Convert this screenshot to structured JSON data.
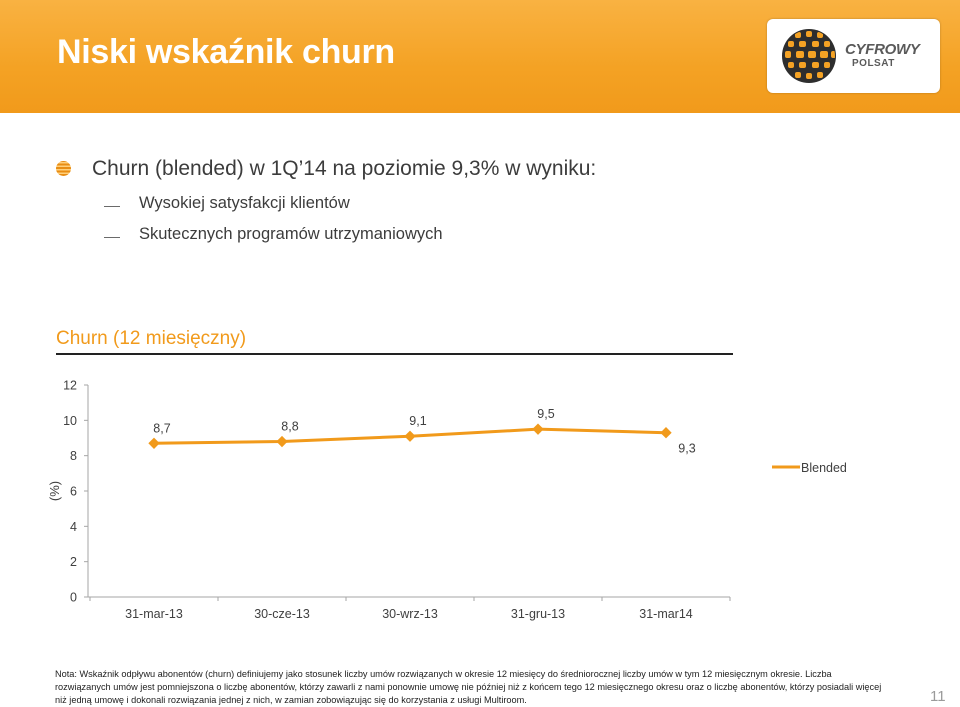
{
  "header": {
    "title": "Niski wskaźnik churn",
    "logo": {
      "line1": "CYFROWY",
      "line2": "POLSAT"
    }
  },
  "content": {
    "main_bullet": "Churn (blended) w 1Q’14 na poziomie 9,3% w wyniku:",
    "sub_bullets": [
      "Wysokiej satysfakcji klientów",
      "Skutecznych programów utrzymaniowych"
    ]
  },
  "chart_data": {
    "type": "line",
    "title": "Churn (12 miesięczny)",
    "ylabel": "(%)",
    "xlabel": "",
    "categories": [
      "31-mar-13",
      "30-cze-13",
      "30-wrz-13",
      "31-gru-13",
      "31-mar14"
    ],
    "series": [
      {
        "name": "Blended",
        "values": [
          8.7,
          8.8,
          9.1,
          9.5,
          9.3
        ],
        "labels": [
          "8,7",
          "8,8",
          "9,1",
          "9,5",
          "9,3"
        ]
      }
    ],
    "ylim": [
      0,
      12
    ],
    "yticks": [
      0,
      2,
      4,
      6,
      8,
      10,
      12
    ],
    "grid": false,
    "legend": "right",
    "color": "#f19a1b"
  },
  "footer": {
    "note": "Nota: Wskaźnik odpływu abonentów (churn) definiujemy jako stosunek liczby umów rozwiązanych w okresie 12 miesięcy do średniorocznej liczby umów w tym 12 miesięcznym okresie. Liczba rozwiązanych umów jest pomniejszona o liczbę abonentów, którzy zawarli z nami ponownie umowę nie później niż z końcem tego 12 miesięcznego okresu oraz o liczbę abonentów, którzy posiadali więcej niż jedną umowę i dokonali rozwiązania jednej z nich, w zamian zobowiązując się do korzystania z usługi Multiroom.",
    "page_number": "11"
  },
  "colors": {
    "accent": "#f19a1b",
    "header_bg": "#f4a224",
    "text": "#3c3c3c"
  }
}
